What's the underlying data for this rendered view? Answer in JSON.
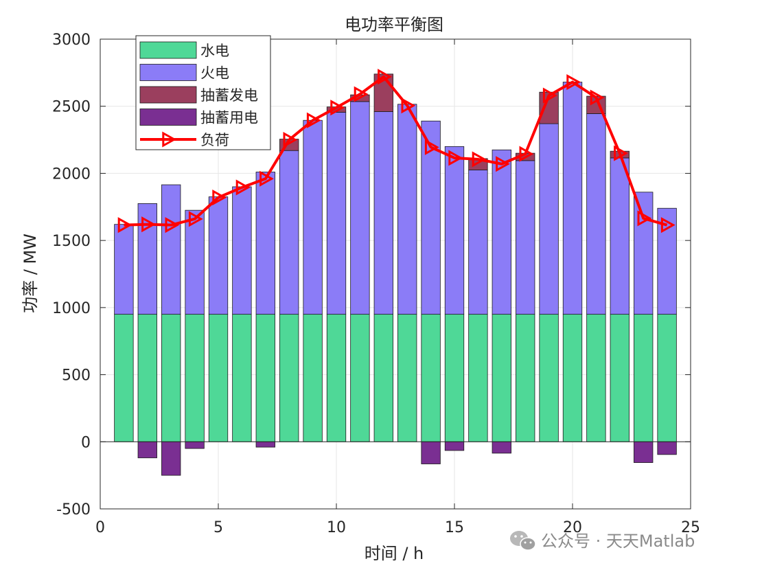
{
  "chart_data": {
    "type": "bar",
    "title": "电功率平衡图",
    "xlabel": "时间 / h",
    "ylabel": "功率 / MW",
    "xlim": [
      0,
      25
    ],
    "ylim": [
      -500,
      3000
    ],
    "xticks": [
      "0",
      "5",
      "10",
      "15",
      "20",
      "25"
    ],
    "yticks": [
      "-500",
      "0",
      "500",
      "1000",
      "1500",
      "2000",
      "2500",
      "3000"
    ],
    "grid": true,
    "legend_position": "top-left",
    "categories": [
      1,
      2,
      3,
      4,
      5,
      6,
      7,
      8,
      9,
      10,
      11,
      12,
      13,
      14,
      15,
      16,
      17,
      18,
      19,
      20,
      21,
      22,
      23,
      24
    ],
    "series": [
      {
        "name": "水电",
        "kind": "bar",
        "color": "#4fd897",
        "values": [
          950,
          950,
          950,
          950,
          950,
          950,
          950,
          950,
          950,
          950,
          950,
          950,
          950,
          950,
          950,
          950,
          950,
          950,
          950,
          950,
          950,
          950,
          950,
          950
        ]
      },
      {
        "name": "火电",
        "kind": "bar",
        "color": "#8b7cf7",
        "values": [
          670,
          825,
          965,
          775,
          875,
          950,
          1060,
          1220,
          1445,
          1505,
          1585,
          1510,
          1565,
          1440,
          1250,
          1075,
          1225,
          1145,
          1420,
          1730,
          1495,
          1165,
          910,
          790
        ]
      },
      {
        "name": "抽蓄发电",
        "kind": "bar",
        "color": "#9b3f5e",
        "values": [
          0,
          0,
          0,
          0,
          0,
          0,
          0,
          85,
          0,
          40,
          50,
          280,
          0,
          0,
          0,
          85,
          0,
          55,
          235,
          0,
          130,
          50,
          0,
          0
        ]
      },
      {
        "name": "抽蓄用电",
        "kind": "bar",
        "color": "#7a2f92",
        "values": [
          0,
          -120,
          -250,
          -50,
          0,
          0,
          -40,
          0,
          0,
          0,
          0,
          0,
          0,
          -165,
          -65,
          0,
          -85,
          0,
          0,
          0,
          0,
          0,
          -155,
          -95
        ]
      },
      {
        "name": "负荷",
        "kind": "line",
        "color": "#ff0000",
        "values": [
          1615,
          1620,
          1615,
          1660,
          1820,
          1895,
          1960,
          2250,
          2395,
          2490,
          2590,
          2720,
          2505,
          2195,
          2115,
          2105,
          2070,
          2145,
          2580,
          2680,
          2565,
          2150,
          1665,
          1615
        ]
      }
    ],
    "watermark": "公众号 · 天天Matlab"
  }
}
